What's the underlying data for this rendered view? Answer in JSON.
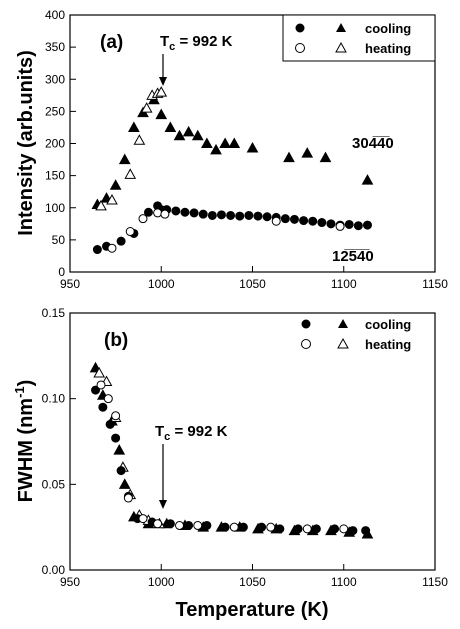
{
  "chart_data": [
    {
      "type": "scatter",
      "panel_label": "(a)",
      "xlabel": "",
      "ylabel": "Intensity (arb.units)",
      "xlim": [
        950,
        1150
      ],
      "ylim": [
        0,
        400
      ],
      "xticks": [
        950,
        1000,
        1050,
        1100,
        1150
      ],
      "yticks": [
        0,
        50,
        100,
        150,
        200,
        250,
        300,
        350,
        400
      ],
      "tc_label": "T",
      "tc_sub": "c",
      "tc_value": " = 992 K",
      "legend": {
        "cooling": "cooling",
        "heating": "heating"
      },
      "peak_labels": {
        "upper_a": "30",
        "upper_b": "4̅4̅0",
        "lower_a": "1",
        "lower_b": "2̅5̅4̅0"
      },
      "series": [
        {
          "name": "cooling",
          "marker": "filled-triangle",
          "x": [
            965,
            970,
            975,
            980,
            985,
            990,
            996,
            1000,
            1005,
            1010,
            1015,
            1020,
            1025,
            1030,
            1035,
            1040,
            1050,
            1070,
            1080,
            1090,
            1113
          ],
          "y": [
            105,
            115,
            135,
            175,
            225,
            248,
            268,
            245,
            225,
            212,
            218,
            212,
            200,
            190,
            200,
            200,
            193,
            178,
            185,
            178,
            143
          ]
        },
        {
          "name": "heating",
          "marker": "open-triangle",
          "x": [
            967,
            973,
            983,
            988,
            992,
            995,
            998,
            1000
          ],
          "y": [
            103,
            112,
            152,
            205,
            255,
            275,
            278,
            280
          ]
        },
        {
          "name": "cooling",
          "marker": "filled-circle",
          "x": [
            965,
            970,
            978,
            985,
            993,
            998,
            1000,
            1003,
            1008,
            1013,
            1018,
            1023,
            1028,
            1033,
            1038,
            1043,
            1048,
            1053,
            1058,
            1063,
            1068,
            1073,
            1078,
            1083,
            1088,
            1093,
            1098,
            1103,
            1108,
            1113
          ],
          "y": [
            35,
            40,
            48,
            60,
            93,
            103,
            97,
            97,
            95,
            93,
            92,
            90,
            88,
            89,
            88,
            87,
            88,
            87,
            86,
            85,
            83,
            82,
            80,
            79,
            77,
            75,
            73,
            74,
            72,
            73
          ]
        },
        {
          "name": "heating",
          "marker": "open-circle",
          "x": [
            973,
            983,
            990,
            998,
            1002,
            1063,
            1098
          ],
          "y": [
            37,
            63,
            83,
            92,
            90,
            79,
            71
          ]
        }
      ]
    },
    {
      "type": "scatter",
      "panel_label": "(b)",
      "xlabel": "Temperature (K)",
      "ylabel_main": "FWHM (nm",
      "ylabel_sup": "-1",
      "ylabel_end": ")",
      "xlim": [
        950,
        1150
      ],
      "ylim": [
        0.0,
        0.15
      ],
      "xticks": [
        950,
        1000,
        1050,
        1100,
        1150
      ],
      "yticks": [
        0.0,
        0.05,
        0.1,
        0.15
      ],
      "ytick_labels": [
        "0.00",
        "0.05",
        "0.10",
        "0.15"
      ],
      "tc_label": "T",
      "tc_sub": "c",
      "tc_value": " = 992 K",
      "legend": {
        "cooling": "cooling",
        "heating": "heating"
      },
      "series": [
        {
          "name": "cooling",
          "marker": "filled-triangle",
          "x": [
            964,
            968,
            973,
            977,
            980,
            985,
            993,
            1003,
            1013,
            1023,
            1033,
            1043,
            1053,
            1063,
            1073,
            1083,
            1093,
            1103,
            1113
          ],
          "y": [
            0.118,
            0.102,
            0.087,
            0.07,
            0.05,
            0.031,
            0.027,
            0.027,
            0.026,
            0.025,
            0.025,
            0.025,
            0.024,
            0.024,
            0.023,
            0.023,
            0.023,
            0.022,
            0.021
          ]
        },
        {
          "name": "heating",
          "marker": "open-triangle",
          "x": [
            966,
            970,
            975,
            979,
            983,
            988,
            993,
            999
          ],
          "y": [
            0.115,
            0.11,
            0.089,
            0.06,
            0.044,
            0.032,
            0.029,
            0.027
          ]
        },
        {
          "name": "cooling",
          "marker": "filled-circle",
          "x": [
            964,
            968,
            972,
            975,
            978,
            982,
            987,
            995,
            1005,
            1015,
            1025,
            1035,
            1045,
            1055,
            1065,
            1075,
            1085,
            1095,
            1105,
            1112
          ],
          "y": [
            0.105,
            0.095,
            0.085,
            0.077,
            0.058,
            0.043,
            0.03,
            0.028,
            0.027,
            0.026,
            0.026,
            0.025,
            0.025,
            0.025,
            0.024,
            0.024,
            0.024,
            0.024,
            0.023,
            0.023
          ]
        },
        {
          "name": "heating",
          "marker": "open-circle",
          "x": [
            967,
            971,
            975,
            982,
            990,
            998,
            1010,
            1020,
            1040,
            1060,
            1080,
            1100
          ],
          "y": [
            0.108,
            0.1,
            0.09,
            0.042,
            0.03,
            0.027,
            0.026,
            0.026,
            0.025,
            0.025,
            0.024,
            0.024
          ]
        }
      ]
    }
  ]
}
